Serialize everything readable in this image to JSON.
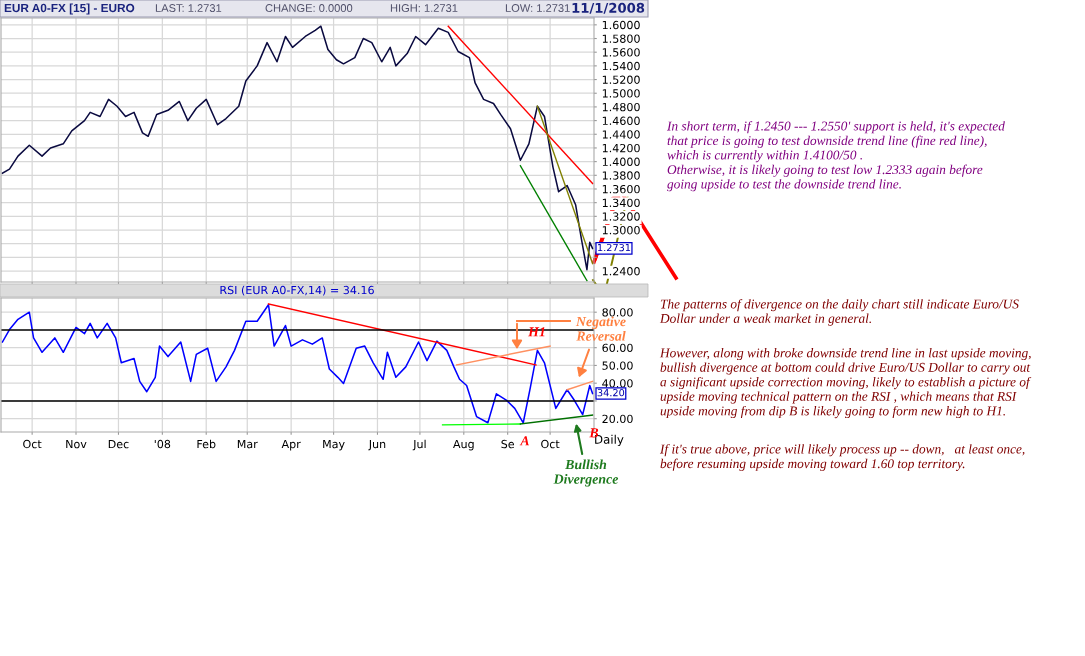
{
  "chart_data": [
    {
      "type": "line",
      "title": "EUR A0-FX [15] - EURO",
      "ylim": [
        1.224,
        1.61
      ],
      "xlim": [
        "2007-09-09",
        "2008-11-01"
      ],
      "grid": true,
      "legend": false,
      "marker": "none",
      "line_style": "solid",
      "tick_labels": "y",
      "xticks": [
        {
          "value": "2007-10-01",
          "label": null
        },
        {
          "value": "2007-11-01",
          "label": null
        },
        {
          "value": "2007-12-01",
          "label": null
        },
        {
          "value": "2008-01-01",
          "label": null
        },
        {
          "value": "2008-02-01",
          "label": null
        },
        {
          "value": "2008-03-01",
          "label": null
        },
        {
          "value": "2008-04-01",
          "label": null
        },
        {
          "value": "2008-05-01",
          "label": null
        },
        {
          "value": "2008-06-01",
          "label": null
        },
        {
          "value": "2008-07-01",
          "label": null
        },
        {
          "value": "2008-08-01",
          "label": null
        },
        {
          "value": "2008-09-01",
          "label": null
        },
        {
          "value": "2008-10-01",
          "label": null
        }
      ],
      "yticks": [
        {
          "value": 1.24,
          "label": "1.2400"
        },
        {
          "value": 1.26,
          "label": null
        },
        {
          "value": 1.28,
          "label": null
        },
        {
          "value": 1.3,
          "label": "1.3000"
        },
        {
          "value": 1.32,
          "label": "1.3200"
        },
        {
          "value": 1.34,
          "label": "1.3400"
        },
        {
          "value": 1.36,
          "label": "1.3600"
        },
        {
          "value": 1.38,
          "label": "1.3800"
        },
        {
          "value": 1.4,
          "label": "1.4000"
        },
        {
          "value": 1.42,
          "label": "1.4200"
        },
        {
          "value": 1.44,
          "label": "1.4400"
        },
        {
          "value": 1.46,
          "label": "1.4600"
        },
        {
          "value": 1.48,
          "label": "1.4800"
        },
        {
          "value": 1.5,
          "label": "1.5000"
        },
        {
          "value": 1.52,
          "label": "1.5200"
        },
        {
          "value": 1.54,
          "label": "1.5400"
        },
        {
          "value": 1.56,
          "label": "1.5600"
        },
        {
          "value": 1.58,
          "label": "1.5800"
        },
        {
          "value": 1.6,
          "label": "1.6000"
        }
      ],
      "series": [
        {
          "color": "#0a0a40",
          "x": [
            "2007-09-10",
            "2007-09-15",
            "2007-09-21",
            "2007-09-29",
            "2007-10-08",
            "2007-10-14",
            "2007-10-23",
            "2007-10-29",
            "2007-11-07",
            "2007-11-11",
            "2007-11-18",
            "2007-11-24",
            "2007-11-30",
            "2007-12-06",
            "2007-12-12",
            "2007-12-18",
            "2007-12-22",
            "2007-12-28",
            "2008-01-05",
            "2008-01-13",
            "2008-01-19",
            "2008-01-25",
            "2008-02-01",
            "2008-02-09",
            "2008-02-15",
            "2008-02-24",
            "2008-02-29",
            "2008-03-08",
            "2008-03-15",
            "2008-03-22",
            "2008-03-28",
            "2008-04-02",
            "2008-04-11",
            "2008-04-18",
            "2008-04-22",
            "2008-04-27",
            "2008-05-03",
            "2008-05-08",
            "2008-05-16",
            "2008-05-22",
            "2008-05-28",
            "2008-06-04",
            "2008-06-10",
            "2008-06-14",
            "2008-06-22",
            "2008-06-28",
            "2008-07-05",
            "2008-07-14",
            "2008-07-21",
            "2008-07-28",
            "2008-08-05",
            "2008-08-09",
            "2008-08-15",
            "2008-08-22",
            "2008-08-27",
            "2008-09-03",
            "2008-09-10",
            "2008-09-16",
            "2008-09-22",
            "2008-09-27",
            "2008-10-03",
            "2008-10-07",
            "2008-10-13",
            "2008-10-19",
            "2008-10-23",
            "2008-10-27",
            "2008-10-29",
            "2008-10-31"
          ],
          "values": [
            1.383,
            1.389,
            1.408,
            1.424,
            1.408,
            1.42,
            1.426,
            1.445,
            1.46,
            1.472,
            1.466,
            1.491,
            1.481,
            1.466,
            1.472,
            1.442,
            1.437,
            1.469,
            1.475,
            1.488,
            1.46,
            1.478,
            1.491,
            1.454,
            1.463,
            1.481,
            1.518,
            1.54,
            1.574,
            1.546,
            1.583,
            1.567,
            1.583,
            1.592,
            1.598,
            1.564,
            1.549,
            1.543,
            1.552,
            1.58,
            1.574,
            1.546,
            1.567,
            1.54,
            1.558,
            1.583,
            1.571,
            1.595,
            1.589,
            1.561,
            1.552,
            1.515,
            1.491,
            1.485,
            1.469,
            1.448,
            1.402,
            1.426,
            1.481,
            1.466,
            1.392,
            1.356,
            1.365,
            1.337,
            1.288,
            1.242,
            1.282,
            1.2731
          ]
        },
        {
          "color": "#ff0000",
          "x": [
            "2008-07-21",
            "2008-10-31"
          ],
          "values": [
            1.598,
            1.368
          ]
        },
        {
          "color": "#008000",
          "x": [
            "2008-09-10",
            "2008-10-27"
          ],
          "values": [
            1.394,
            1.226
          ]
        },
        {
          "color": "#808000",
          "x": [
            "2008-09-22",
            "2008-10-31"
          ],
          "values": [
            1.481,
            1.251
          ]
        }
      ],
      "annotations": [
        "LAST: 1.2731",
        "CHANGE: 0.0000",
        "HIGH: 1.2731",
        "LOW: 1.2731",
        "11/1/2008",
        {
          "text": "1.2731",
          "y": 1.2731
        },
        "In short term, if 1.2450 --- 1.2550' support is held, it's expected\nthat price is going to test downside trend line (fine red line),\nwhich is currently within 1.4100/50 .\nOtherwise, it is likely going to test low 1.2333 again before\ngoing upside to test the downside trend line."
      ]
    },
    {
      "type": "line",
      "title": "RSI (EUR A0-FX,14) = 34.16",
      "xlabel": "Daily",
      "ylim": [
        12.5,
        88
      ],
      "xlim": [
        "2007-09-09",
        "2008-11-01"
      ],
      "grid": true,
      "legend": false,
      "marker": "none",
      "line_style": "solid",
      "xticks": [
        {
          "value": "2007-10-01",
          "label": "Oct"
        },
        {
          "value": "2007-11-01",
          "label": "Nov"
        },
        {
          "value": "2007-12-01",
          "label": "Dec"
        },
        {
          "value": "2008-01-01",
          "label": "'08"
        },
        {
          "value": "2008-02-01",
          "label": "Feb"
        },
        {
          "value": "2008-03-01",
          "label": "Mar"
        },
        {
          "value": "2008-04-01",
          "label": "Apr"
        },
        {
          "value": "2008-05-01",
          "label": "May"
        },
        {
          "value": "2008-06-01",
          "label": "Jun"
        },
        {
          "value": "2008-07-01",
          "label": "Jul"
        },
        {
          "value": "2008-08-01",
          "label": "Aug"
        },
        {
          "value": "2008-09-01",
          "label": "Se"
        },
        {
          "value": "2008-10-01",
          "label": "Oct"
        }
      ],
      "yticks": [
        {
          "value": 20,
          "label": "20.00"
        },
        {
          "value": 30,
          "label": null
        },
        {
          "value": 40,
          "label": "40.00"
        },
        {
          "value": 50,
          "label": "50.00"
        },
        {
          "value": 60,
          "label": "60.00"
        },
        {
          "value": 80,
          "label": "80.00"
        }
      ],
      "ref_lines": [
        {
          "axis": "y",
          "value": 70,
          "color": "#000000"
        },
        {
          "axis": "y",
          "value": 30,
          "color": "#000000"
        }
      ],
      "series": [
        {
          "color": "#0000ff",
          "x": [
            "2007-09-10",
            "2007-09-15",
            "2007-09-21",
            "2007-09-29",
            "2007-10-02",
            "2007-10-08",
            "2007-10-17",
            "2007-10-23",
            "2007-11-01",
            "2007-11-07",
            "2007-11-11",
            "2007-11-16",
            "2007-11-23",
            "2007-11-29",
            "2007-12-03",
            "2007-12-12",
            "2007-12-16",
            "2007-12-21",
            "2007-12-27",
            "2007-12-30",
            "2008-01-05",
            "2008-01-14",
            "2008-01-21",
            "2008-01-25",
            "2008-02-02",
            "2008-02-08",
            "2008-02-15",
            "2008-02-21",
            "2008-02-29",
            "2008-03-08",
            "2008-03-16",
            "2008-03-20",
            "2008-03-28",
            "2008-04-01",
            "2008-04-09",
            "2008-04-16",
            "2008-04-23",
            "2008-04-28",
            "2008-05-04",
            "2008-05-08",
            "2008-05-17",
            "2008-05-23",
            "2008-05-29",
            "2008-06-05",
            "2008-06-08",
            "2008-06-14",
            "2008-06-21",
            "2008-06-30",
            "2008-07-06",
            "2008-07-13",
            "2008-07-20",
            "2008-07-25",
            "2008-07-29",
            "2008-08-03",
            "2008-08-10",
            "2008-08-18",
            "2008-08-24",
            "2008-08-31",
            "2008-09-06",
            "2008-09-12",
            "2008-09-17",
            "2008-09-22",
            "2008-09-27",
            "2008-10-05",
            "2008-10-13",
            "2008-10-18",
            "2008-10-24",
            "2008-10-29",
            "2008-10-31"
          ],
          "values": [
            63.2,
            70.2,
            76,
            80,
            65.5,
            57.4,
            65.5,
            57.4,
            71.4,
            67.9,
            73.7,
            65.5,
            73.7,
            65.5,
            51.5,
            53.9,
            41,
            35.2,
            43.3,
            60.9,
            55,
            63.2,
            41,
            56.2,
            59.7,
            41,
            49.2,
            58.5,
            74.9,
            74.9,
            84.2,
            60.9,
            72.5,
            60.9,
            64.4,
            62,
            65.5,
            48,
            43.3,
            39.8,
            59.7,
            60.9,
            51.5,
            42.2,
            57.4,
            43.3,
            49.2,
            63.2,
            52.7,
            63.7,
            58.5,
            49.2,
            42.2,
            38.7,
            21.2,
            17.7,
            34,
            30.5,
            25.8,
            17.7,
            37.5,
            58.5,
            51.5,
            25.8,
            36.3,
            30.5,
            22.3,
            38.7,
            34.16
          ]
        },
        {
          "color": "#ff0000",
          "x": [
            "2008-03-16",
            "2008-09-21"
          ],
          "values": [
            84.7,
            50.3
          ]
        },
        {
          "color": "#ff9060",
          "x": [
            "2008-07-27",
            "2008-10-01"
          ],
          "values": [
            50.3,
            60.9
          ]
        },
        {
          "color": "#ff9060",
          "x": [
            "2008-10-13",
            "2008-10-31"
          ],
          "values": [
            36.3,
            41
          ]
        },
        {
          "color": "#00ff00",
          "x": [
            "2008-07-17",
            "2008-09-10"
          ],
          "values": [
            16.5,
            17
          ]
        },
        {
          "color": "#007000",
          "x": [
            "2008-09-10",
            "2008-10-31"
          ],
          "values": [
            17,
            22
          ]
        }
      ],
      "annotations": [
        {
          "text": "34.20",
          "y": 34.2
        },
        {
          "text": "H1",
          "x": "2008-09-22",
          "y": 58.5
        },
        "Negative Reversal",
        {
          "text": "A",
          "x": "2008-09-10",
          "y": 17.7
        },
        {
          "text": "B",
          "x": "2008-10-23",
          "y": 22.3
        },
        {
          "text": "Bullish Divergence",
          "x": "2008-10-19",
          "y": 18.8
        },
        "The patterns of divergence on the daily chart still indicate Euro/US\nDollar under a weak market in general.",
        "However, along with broke downside trend line in last upside moving,\nbullish divergence at bottom could drive Euro/US Dollar to carry out\na significant upside correction moving, likely to establish a picture of\nupside moving technical pattern on the RSI , which means that RSI\nupside moving from dip B is likely going to form new high to H1.",
        "If it's true above, price will likely process up -- down,   at least once,\nbefore resuming upside moving toward 1.60 top territory."
      ]
    }
  ]
}
